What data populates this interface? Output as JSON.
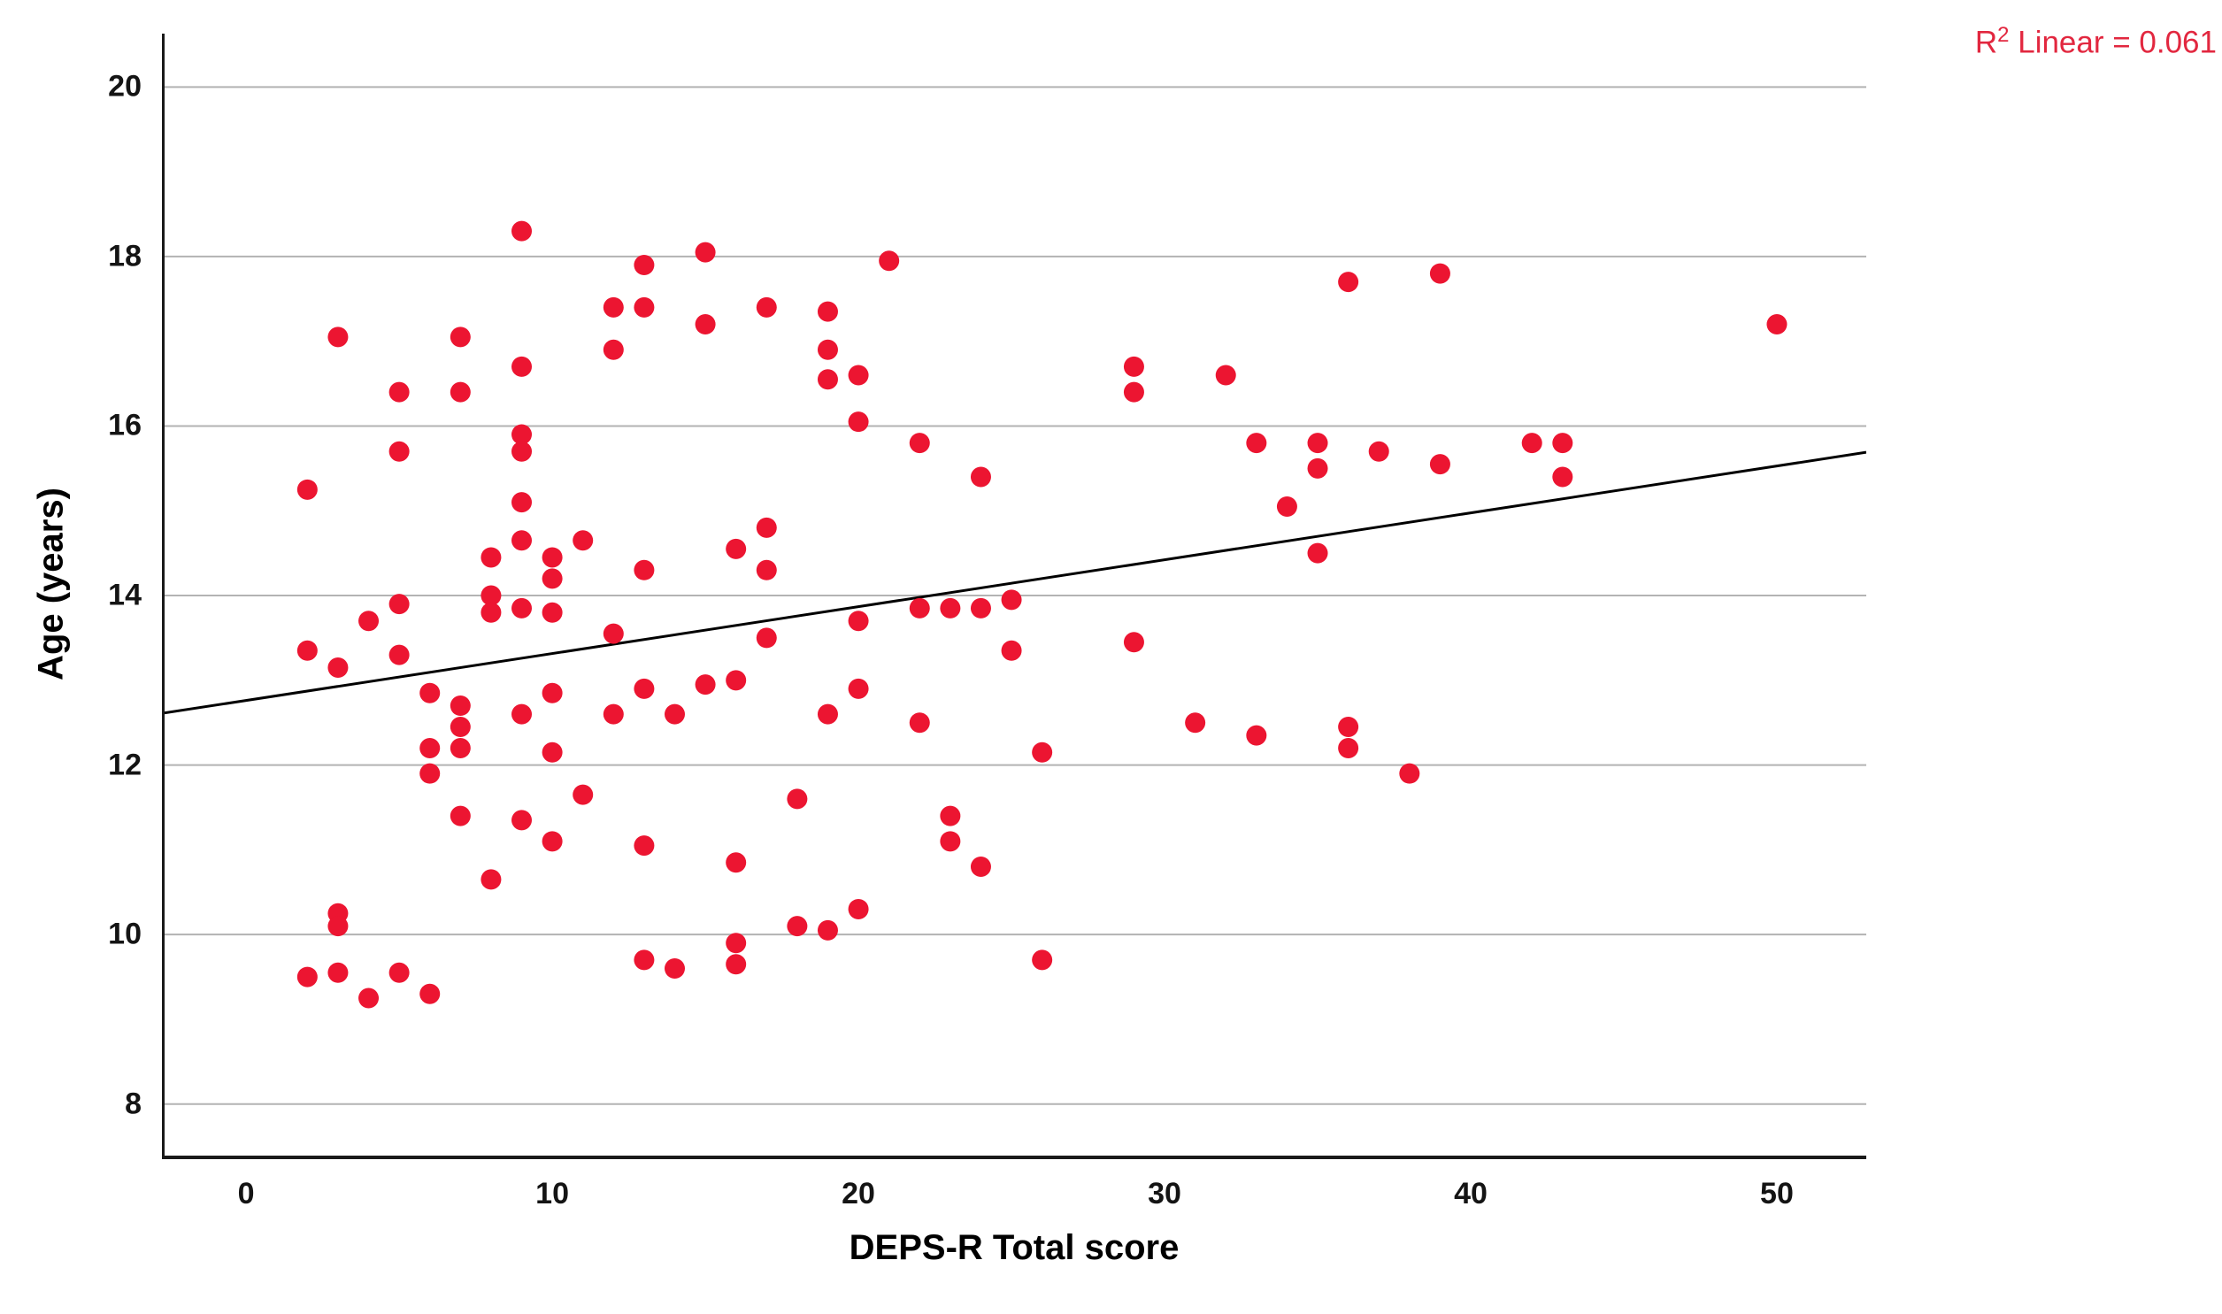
{
  "figure": {
    "y_title": "Age (years)",
    "x_title": "DEPS-R Total score",
    "r2_r": "R",
    "r2_sup": "2",
    "r2_rest": " Linear = 0.061"
  },
  "chart_data": {
    "type": "scatter",
    "title": "",
    "xlabel": "DEPS-R Total score",
    "ylabel": "Age (years)",
    "x_ticks": [
      0,
      10,
      20,
      30,
      40,
      50
    ],
    "y_ticks": [
      8,
      10,
      12,
      14,
      16,
      18,
      20
    ],
    "xlim": [
      -2.75,
      52.92
    ],
    "ylim": [
      7.35,
      20.63
    ],
    "grid": "horizontal-only",
    "legend": "none",
    "marker_color": "#ec1531",
    "grid_color": "#b3b3b3",
    "axis_color": "#1a1a1a",
    "annotation": {
      "text": "R2 Linear = 0.061",
      "color": "#e2273f",
      "position": "top-right"
    },
    "regression_line": {
      "x1": -2.75,
      "y1": 12.61,
      "x2": 52.92,
      "y2": 15.69,
      "color": "#000000"
    },
    "points": [
      [
        9,
        18.3
      ],
      [
        15,
        18.05
      ],
      [
        21,
        17.95
      ],
      [
        13,
        17.9
      ],
      [
        39,
        17.8
      ],
      [
        36,
        17.7
      ],
      [
        12,
        17.4
      ],
      [
        13,
        17.4
      ],
      [
        17,
        17.4
      ],
      [
        19,
        17.35
      ],
      [
        15,
        17.2
      ],
      [
        50,
        17.2
      ],
      [
        3,
        17.05
      ],
      [
        7,
        17.05
      ],
      [
        12,
        16.9
      ],
      [
        19,
        16.9
      ],
      [
        9,
        16.7
      ],
      [
        29,
        16.7
      ],
      [
        20,
        16.6
      ],
      [
        32,
        16.6
      ],
      [
        19,
        16.55
      ],
      [
        5,
        16.4
      ],
      [
        7,
        16.4
      ],
      [
        29,
        16.4
      ],
      [
        20,
        16.05
      ],
      [
        9,
        15.9
      ],
      [
        22,
        15.8
      ],
      [
        33,
        15.8
      ],
      [
        35,
        15.8
      ],
      [
        42,
        15.8
      ],
      [
        43,
        15.8
      ],
      [
        5,
        15.7
      ],
      [
        9,
        15.7
      ],
      [
        37,
        15.7
      ],
      [
        39,
        15.55
      ],
      [
        35,
        15.5
      ],
      [
        24,
        15.4
      ],
      [
        43,
        15.4
      ],
      [
        2,
        15.25
      ],
      [
        9,
        15.1
      ],
      [
        34,
        15.05
      ],
      [
        17,
        14.8
      ],
      [
        9,
        14.65
      ],
      [
        11,
        14.65
      ],
      [
        16,
        14.55
      ],
      [
        35,
        14.5
      ],
      [
        8,
        14.45
      ],
      [
        10,
        14.45
      ],
      [
        13,
        14.3
      ],
      [
        17,
        14.3
      ],
      [
        10,
        14.2
      ],
      [
        8,
        14.0
      ],
      [
        25,
        13.95
      ],
      [
        5,
        13.9
      ],
      [
        9,
        13.85
      ],
      [
        22,
        13.85
      ],
      [
        23,
        13.85
      ],
      [
        24,
        13.85
      ],
      [
        8,
        13.8
      ],
      [
        10,
        13.8
      ],
      [
        4,
        13.7
      ],
      [
        20,
        13.7
      ],
      [
        12,
        13.55
      ],
      [
        17,
        13.5
      ],
      [
        29,
        13.45
      ],
      [
        2,
        13.35
      ],
      [
        25,
        13.35
      ],
      [
        5,
        13.3
      ],
      [
        3,
        13.15
      ],
      [
        16,
        13.0
      ],
      [
        15,
        12.95
      ],
      [
        13,
        12.9
      ],
      [
        20,
        12.9
      ],
      [
        6,
        12.85
      ],
      [
        10,
        12.85
      ],
      [
        7,
        12.7
      ],
      [
        9,
        12.6
      ],
      [
        12,
        12.6
      ],
      [
        14,
        12.6
      ],
      [
        19,
        12.6
      ],
      [
        22,
        12.5
      ],
      [
        31,
        12.5
      ],
      [
        7,
        12.45
      ],
      [
        36,
        12.45
      ],
      [
        33,
        12.35
      ],
      [
        6,
        12.2
      ],
      [
        7,
        12.2
      ],
      [
        36,
        12.2
      ],
      [
        10,
        12.15
      ],
      [
        26,
        12.15
      ],
      [
        6,
        11.9
      ],
      [
        38,
        11.9
      ],
      [
        11,
        11.65
      ],
      [
        18,
        11.6
      ],
      [
        7,
        11.4
      ],
      [
        23,
        11.4
      ],
      [
        9,
        11.35
      ],
      [
        10,
        11.1
      ],
      [
        23,
        11.1
      ],
      [
        13,
        11.05
      ],
      [
        16,
        10.85
      ],
      [
        24,
        10.8
      ],
      [
        8,
        10.65
      ],
      [
        20,
        10.3
      ],
      [
        3,
        10.25
      ],
      [
        3,
        10.1
      ],
      [
        18,
        10.1
      ],
      [
        19,
        10.05
      ],
      [
        16,
        9.9
      ],
      [
        13,
        9.7
      ],
      [
        26,
        9.7
      ],
      [
        16,
        9.65
      ],
      [
        14,
        9.6
      ],
      [
        3,
        9.55
      ],
      [
        5,
        9.55
      ],
      [
        2,
        9.5
      ],
      [
        6,
        9.3
      ],
      [
        4,
        9.25
      ]
    ]
  }
}
